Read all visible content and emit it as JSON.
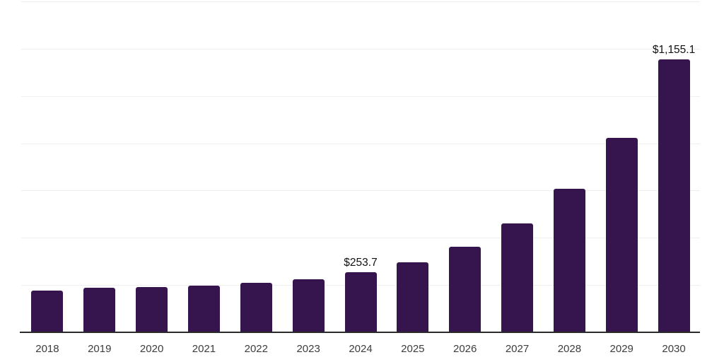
{
  "chart_data": {
    "type": "bar",
    "title": "",
    "xlabel": "",
    "ylabel": "",
    "categories": [
      "2018",
      "2019",
      "2020",
      "2021",
      "2022",
      "2023",
      "2024",
      "2025",
      "2026",
      "2027",
      "2028",
      "2029",
      "2030"
    ],
    "values": [
      176,
      188,
      191,
      197,
      209,
      224,
      253.7,
      296,
      361,
      460,
      606,
      824,
      1155.1
    ],
    "labeled_points": [
      {
        "category": "2024",
        "text": "$253.7"
      },
      {
        "category": "2030",
        "text": "$1,155.1"
      }
    ],
    "ylim": [
      0,
      1400
    ],
    "gridline_step": 200,
    "grid": "horizontal-only",
    "legend": "none",
    "y_axis_ticks_visible": false,
    "colors": {
      "bar": "#36154e",
      "axis_line": "#2b2b2b",
      "gridline": "#efefef",
      "tick_label": "#3d3d3d",
      "value_label": "#111111",
      "background": "#ffffff"
    }
  }
}
